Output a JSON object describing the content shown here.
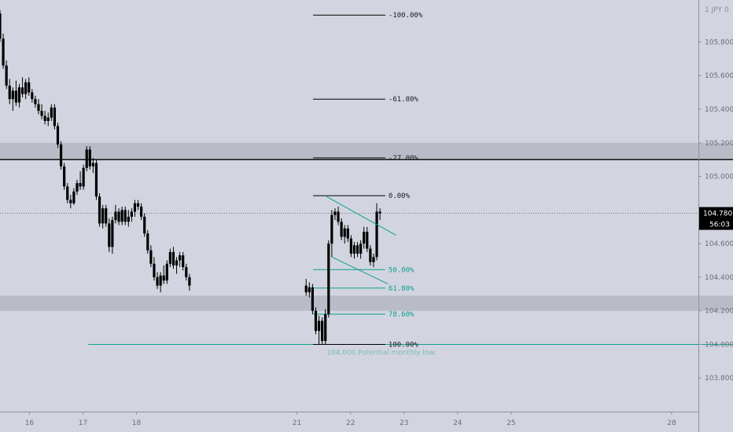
{
  "chart_data": {
    "type": "candlestick",
    "y_axis": {
      "currency": "JPY",
      "currency_value": "0",
      "ylim": [
        103.6,
        106.05
      ],
      "tick_values": [
        103.8,
        104.0,
        104.2,
        104.4,
        104.6,
        104.8,
        105.0,
        105.2,
        105.4,
        105.6,
        105.8
      ],
      "tick_labels": [
        "103.800",
        "104.000",
        "104.200",
        "104.400",
        "104.600",
        "104.800",
        "105.000",
        "105.200",
        "105.400",
        "105.600",
        "105.800"
      ]
    },
    "x_axis": {
      "xlim": [
        15.45,
        28.5
      ],
      "tick_values": [
        16,
        17,
        18,
        21,
        22,
        23,
        24,
        25,
        28
      ],
      "tick_labels": [
        "16",
        "17",
        "18",
        "21",
        "22",
        "23",
        "24",
        "25",
        "28"
      ]
    },
    "current_price": {
      "label": "104.780",
      "value": 104.78,
      "countdown": "56:03"
    },
    "zones": [
      {
        "from": 105.1,
        "to": 105.2
      },
      {
        "from": 104.2,
        "to": 104.29
      }
    ],
    "fib_levels_upper": [
      {
        "label": "-100.00%",
        "value": 105.96,
        "color": "#000000"
      },
      {
        "label": "-61.80%",
        "value": 105.46,
        "color": "#000000"
      },
      {
        "label": "-27.00%",
        "value": 105.11,
        "color": "#000000"
      },
      {
        "label": "0.00%",
        "value": 104.885,
        "color": "#000000"
      }
    ],
    "fib_levels_lower": [
      {
        "label": "50.00%",
        "value": 104.445,
        "color": "#0e9f8e"
      },
      {
        "label": "61.80%",
        "value": 104.335,
        "color": "#0e9f8e"
      },
      {
        "label": "78.60%",
        "value": 104.18,
        "color": "#0e9f8e"
      },
      {
        "label": "100.00%",
        "value": 104.0,
        "color": "#000000"
      }
    ],
    "fib_x_range": [
      21.3,
      22.65
    ],
    "support_line": {
      "value": 104.0,
      "x_from": 17.1
    },
    "horizontal_line": {
      "value": 105.1
    },
    "annotation": {
      "text": "104.000.Potential monthly low.",
      "x": 21.55,
      "y": 103.94
    },
    "channel_lines": [
      {
        "x1": 21.55,
        "y1": 104.88,
        "x2": 22.85,
        "y2": 104.65
      },
      {
        "x1": 21.65,
        "y1": 104.52,
        "x2": 22.7,
        "y2": 104.36
      }
    ],
    "candles": [
      [
        15.45,
        105.97,
        105.99,
        105.8,
        105.82
      ],
      [
        15.51,
        105.82,
        105.85,
        105.64,
        105.66
      ],
      [
        15.57,
        105.66,
        105.69,
        105.52,
        105.54
      ],
      [
        15.63,
        105.54,
        105.58,
        105.43,
        105.46
      ],
      [
        15.69,
        105.46,
        105.53,
        105.39,
        105.51
      ],
      [
        15.75,
        105.51,
        105.57,
        105.42,
        105.44
      ],
      [
        15.81,
        105.44,
        105.55,
        105.41,
        105.53
      ],
      [
        15.87,
        105.53,
        105.59,
        105.47,
        105.49
      ],
      [
        15.93,
        105.49,
        105.58,
        105.46,
        105.56
      ],
      [
        15.99,
        105.56,
        105.59,
        105.48,
        105.5
      ],
      [
        16.05,
        105.5,
        105.52,
        105.44,
        105.46
      ],
      [
        16.11,
        105.46,
        105.48,
        105.41,
        105.43
      ],
      [
        16.17,
        105.43,
        105.46,
        105.37,
        105.39
      ],
      [
        16.23,
        105.39,
        105.43,
        105.34,
        105.36
      ],
      [
        16.29,
        105.36,
        105.39,
        105.31,
        105.33
      ],
      [
        16.35,
        105.33,
        105.38,
        105.3,
        105.35
      ],
      [
        16.41,
        105.35,
        105.43,
        105.33,
        105.41
      ],
      [
        16.47,
        105.41,
        105.43,
        105.28,
        105.3
      ],
      [
        16.53,
        105.3,
        105.32,
        105.17,
        105.19
      ],
      [
        16.59,
        105.19,
        105.21,
        105.04,
        105.06
      ],
      [
        16.65,
        105.06,
        105.08,
        104.92,
        104.94
      ],
      [
        16.71,
        104.94,
        104.96,
        104.84,
        104.86
      ],
      [
        16.77,
        104.86,
        104.89,
        104.81,
        104.84
      ],
      [
        16.83,
        104.84,
        104.93,
        104.83,
        104.91
      ],
      [
        16.89,
        104.91,
        104.98,
        104.89,
        104.96
      ],
      [
        16.95,
        104.96,
        105.03,
        104.92,
        104.94
      ],
      [
        17.01,
        104.94,
        105.07,
        104.92,
        105.05
      ],
      [
        17.07,
        105.05,
        105.18,
        105.03,
        105.16
      ],
      [
        17.13,
        105.16,
        105.18,
        105.04,
        105.06
      ],
      [
        17.19,
        105.06,
        105.11,
        105.02,
        105.08
      ],
      [
        17.25,
        105.08,
        105.1,
        104.86,
        104.88
      ],
      [
        17.31,
        104.88,
        104.9,
        104.7,
        104.72
      ],
      [
        17.37,
        104.72,
        104.83,
        104.69,
        104.81
      ],
      [
        17.43,
        104.81,
        104.83,
        104.7,
        104.72
      ],
      [
        17.49,
        104.72,
        104.75,
        104.55,
        104.58
      ],
      [
        17.55,
        104.58,
        104.76,
        104.54,
        104.74
      ],
      [
        17.61,
        104.74,
        104.83,
        104.72,
        104.79
      ],
      [
        17.67,
        104.79,
        104.81,
        104.71,
        104.73
      ],
      [
        17.73,
        104.73,
        104.82,
        104.71,
        104.8
      ],
      [
        17.79,
        104.8,
        104.82,
        104.71,
        104.73
      ],
      [
        17.85,
        104.73,
        104.8,
        104.7,
        104.76
      ],
      [
        17.91,
        104.76,
        104.81,
        104.73,
        104.79
      ],
      [
        17.97,
        104.79,
        104.86,
        104.76,
        104.84
      ],
      [
        18.03,
        104.84,
        104.86,
        104.8,
        104.82
      ],
      [
        18.09,
        104.82,
        104.84,
        104.74,
        104.76
      ],
      [
        18.15,
        104.76,
        104.78,
        104.64,
        104.66
      ],
      [
        18.21,
        104.66,
        104.68,
        104.54,
        104.56
      ],
      [
        18.27,
        104.56,
        104.59,
        104.46,
        104.48
      ],
      [
        18.33,
        104.48,
        104.52,
        104.38,
        104.4
      ],
      [
        18.39,
        104.4,
        104.43,
        104.33,
        104.35
      ],
      [
        18.45,
        104.35,
        104.43,
        104.31,
        104.41
      ],
      [
        18.51,
        104.41,
        104.47,
        104.36,
        104.38
      ],
      [
        18.57,
        104.38,
        104.5,
        104.36,
        104.48
      ],
      [
        18.63,
        104.48,
        104.57,
        104.46,
        104.55
      ],
      [
        18.69,
        104.55,
        104.58,
        104.45,
        104.47
      ],
      [
        18.75,
        104.47,
        104.52,
        104.42,
        104.5
      ],
      [
        18.81,
        104.5,
        104.55,
        104.46,
        104.53
      ],
      [
        18.87,
        104.53,
        104.55,
        104.44,
        104.46
      ],
      [
        18.93,
        104.46,
        104.48,
        104.38,
        104.4
      ],
      [
        18.99,
        104.4,
        104.42,
        104.32,
        104.35
      ],
      [
        21.17,
        104.35,
        104.39,
        104.29,
        104.31
      ],
      [
        21.23,
        104.31,
        104.37,
        104.28,
        104.34
      ],
      [
        21.29,
        104.34,
        104.36,
        104.18,
        104.2
      ],
      [
        21.35,
        104.2,
        104.22,
        104.06,
        104.08
      ],
      [
        21.41,
        104.08,
        104.17,
        104.0,
        104.14
      ],
      [
        21.47,
        104.14,
        104.16,
        104.0,
        104.02
      ],
      [
        21.53,
        104.02,
        104.21,
        104.0,
        104.18
      ],
      [
        21.59,
        104.18,
        104.62,
        104.16,
        104.6
      ],
      [
        21.65,
        104.6,
        104.8,
        104.52,
        104.77
      ],
      [
        21.71,
        104.77,
        104.81,
        104.74,
        104.79
      ],
      [
        21.77,
        104.79,
        104.82,
        104.71,
        104.73
      ],
      [
        21.83,
        104.73,
        104.75,
        104.62,
        104.64
      ],
      [
        21.89,
        104.64,
        104.71,
        104.6,
        104.69
      ],
      [
        21.95,
        104.69,
        104.71,
        104.61,
        104.63
      ],
      [
        22.01,
        104.63,
        104.65,
        104.52,
        104.54
      ],
      [
        22.07,
        104.54,
        104.61,
        104.51,
        104.59
      ],
      [
        22.13,
        104.59,
        104.61,
        104.52,
        104.54
      ],
      [
        22.19,
        104.54,
        104.62,
        104.51,
        104.6
      ],
      [
        22.25,
        104.6,
        104.7,
        104.57,
        104.67
      ],
      [
        22.31,
        104.67,
        104.7,
        104.55,
        104.57
      ],
      [
        22.37,
        104.57,
        104.59,
        104.47,
        104.49
      ],
      [
        22.43,
        104.49,
        104.54,
        104.46,
        104.52
      ],
      [
        22.49,
        104.52,
        104.84,
        104.5,
        104.79
      ],
      [
        22.55,
        104.79,
        104.81,
        104.74,
        104.78
      ]
    ]
  }
}
